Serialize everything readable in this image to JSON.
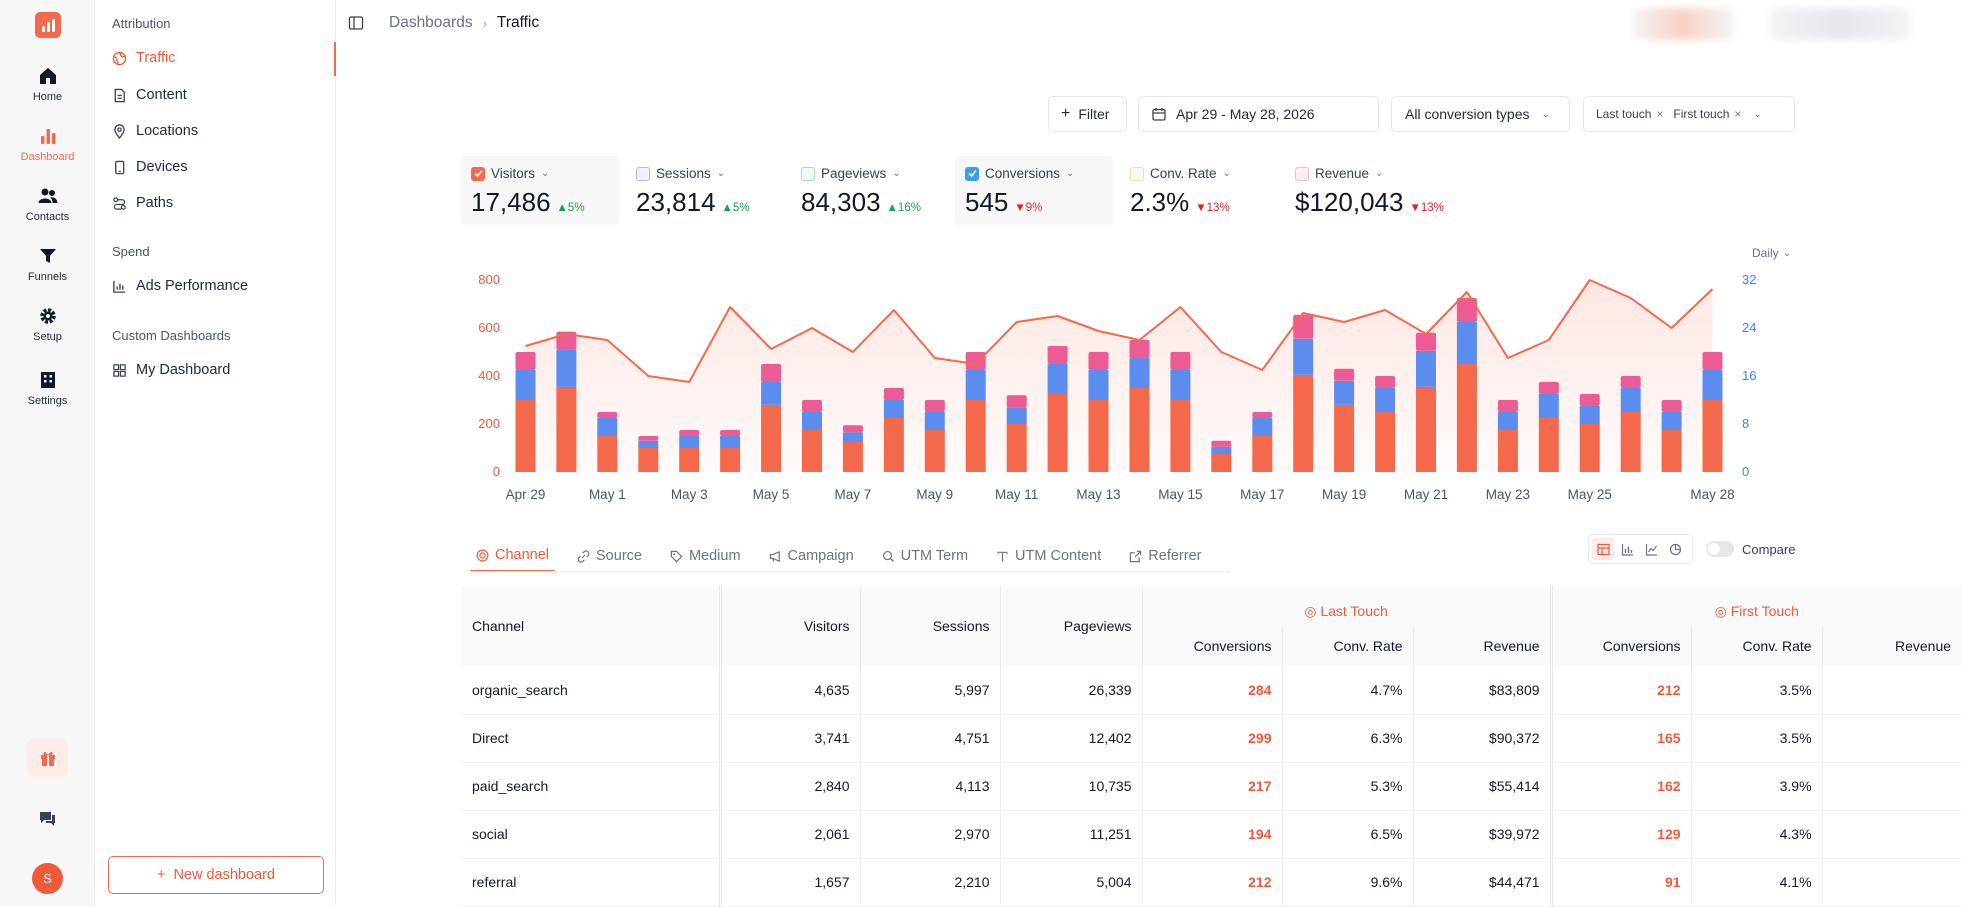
{
  "rail": {
    "items": [
      {
        "label": "Home",
        "icon": "home-icon"
      },
      {
        "label": "Dashboard",
        "icon": "bar-chart-icon",
        "active": true
      },
      {
        "label": "Contacts",
        "icon": "users-icon"
      },
      {
        "label": "Funnels",
        "icon": "funnel-icon"
      },
      {
        "label": "Setup",
        "icon": "gear-icon"
      },
      {
        "label": "Settings",
        "icon": "building-icon"
      }
    ],
    "avatar": "S"
  },
  "sidebar": {
    "attribution_title": "Attribution",
    "attribution": [
      "Traffic",
      "Content",
      "Locations",
      "Devices",
      "Paths"
    ],
    "spend_title": "Spend",
    "spend": [
      "Ads Performance"
    ],
    "custom_title": "Custom Dashboards",
    "custom": [
      "My Dashboard"
    ],
    "new_dashboard": "New dashboard"
  },
  "breadcrumb": {
    "parent": "Dashboards",
    "current": "Traffic"
  },
  "filters": {
    "filter_label": "Filter",
    "date_range": "Apr 29 - May 28, 2026",
    "conversion_types": "All conversion types",
    "chips": [
      "Last touch",
      "First touch"
    ]
  },
  "metrics": [
    {
      "label": "Visitors",
      "value": "17,486",
      "delta": "5%",
      "dir": "up",
      "checked": true,
      "color": "#f4694b"
    },
    {
      "label": "Sessions",
      "value": "23,814",
      "delta": "5%",
      "dir": "up",
      "checked": false,
      "color": "#8b7cf6"
    },
    {
      "label": "Pageviews",
      "value": "84,303",
      "delta": "16%",
      "dir": "up",
      "checked": false,
      "color": "#22c55e"
    },
    {
      "label": "Conversions",
      "value": "545",
      "delta": "9%",
      "dir": "down",
      "checked": true,
      "color": "#3b82f6"
    },
    {
      "label": "Conv. Rate",
      "value": "2.3%",
      "delta": "13%",
      "dir": "down",
      "checked": false,
      "color": "#f59e0b"
    },
    {
      "label": "Revenue",
      "value": "$120,043",
      "delta": "13%",
      "dir": "down",
      "checked": false,
      "color": "#ec4899"
    }
  ],
  "granularity": "Daily",
  "chart_data": {
    "type": "bar",
    "stacked": true,
    "left_ticks": [
      "0",
      "200",
      "400",
      "600",
      "800"
    ],
    "right_ticks": [
      "0",
      "8",
      "16",
      "24",
      "32"
    ],
    "left_axis_range": [
      0,
      800
    ],
    "right_axis_range": [
      0,
      32
    ],
    "x_labels": [
      "Apr 29",
      "May 1",
      "May 3",
      "May 5",
      "May 7",
      "May 9",
      "May 11",
      "May 13",
      "May 15",
      "May 17",
      "May 19",
      "May 21",
      "May 23",
      "May 25",
      "May 28"
    ],
    "x_label_index": [
      0,
      2,
      4,
      6,
      8,
      10,
      12,
      14,
      16,
      18,
      20,
      22,
      24,
      26,
      29
    ],
    "series": [
      {
        "color": "#f4694b",
        "values": [
          300,
          355,
          150,
          100,
          100,
          100,
          280,
          175,
          125,
          225,
          175,
          300,
          200,
          325,
          300,
          350,
          300,
          75,
          150,
          405,
          280,
          250,
          355,
          450,
          175,
          225,
          200,
          250,
          175,
          300
        ]
      },
      {
        "color": "#5b8def",
        "values": [
          125,
          155,
          75,
          30,
          50,
          50,
          95,
          75,
          40,
          75,
          75,
          125,
          70,
          125,
          125,
          125,
          125,
          30,
          75,
          150,
          100,
          100,
          150,
          175,
          75,
          100,
          75,
          100,
          75,
          125
        ]
      },
      {
        "color": "#ec5b93",
        "values": [
          75,
          75,
          25,
          20,
          25,
          25,
          75,
          50,
          30,
          50,
          50,
          75,
          50,
          75,
          75,
          75,
          75,
          25,
          25,
          100,
          50,
          50,
          75,
          100,
          50,
          50,
          50,
          50,
          50,
          75
        ]
      }
    ],
    "line": {
      "color": "#f4694b",
      "axis": "right",
      "values": [
        21,
        23,
        22,
        16,
        15,
        27.5,
        20.5,
        24,
        20,
        27,
        19,
        18,
        25,
        26,
        23.5,
        22,
        27.5,
        20,
        17,
        26.5,
        25,
        27,
        23,
        30,
        19,
        22,
        32,
        29,
        24,
        30.5
      ]
    }
  },
  "tabs": [
    {
      "label": "Channel",
      "icon": "target-icon",
      "active": true
    },
    {
      "label": "Source",
      "icon": "link-icon"
    },
    {
      "label": "Medium",
      "icon": "tag-icon"
    },
    {
      "label": "Campaign",
      "icon": "megaphone-icon"
    },
    {
      "label": "UTM Term",
      "icon": "search-icon"
    },
    {
      "label": "UTM Content",
      "icon": "text-icon"
    },
    {
      "label": "Referrer",
      "icon": "external-link-icon"
    }
  ],
  "compare_label": "Compare",
  "table": {
    "channel_header": "Channel",
    "headers": [
      "Visitors",
      "Sessions",
      "Pageviews"
    ],
    "groups": [
      "Last Touch",
      "First Touch"
    ],
    "group_cols": [
      "Conversions",
      "Conv. Rate",
      "Revenue"
    ],
    "rows": [
      [
        "organic_search",
        "4,635",
        "5,997",
        "26,339",
        "284",
        "4.7%",
        "$83,809",
        "212",
        "3.5%"
      ],
      [
        "Direct",
        "3,741",
        "4,751",
        "12,402",
        "299",
        "6.3%",
        "$90,372",
        "165",
        "3.5%"
      ],
      [
        "paid_search",
        "2,840",
        "4,113",
        "10,735",
        "217",
        "5.3%",
        "$55,414",
        "162",
        "3.9%"
      ],
      [
        "social",
        "2,061",
        "2,970",
        "11,251",
        "194",
        "6.5%",
        "$39,972",
        "129",
        "4.3%"
      ],
      [
        "referral",
        "1,657",
        "2,210",
        "5,004",
        "212",
        "9.6%",
        "$44,471",
        "91",
        "4.1%"
      ]
    ]
  }
}
